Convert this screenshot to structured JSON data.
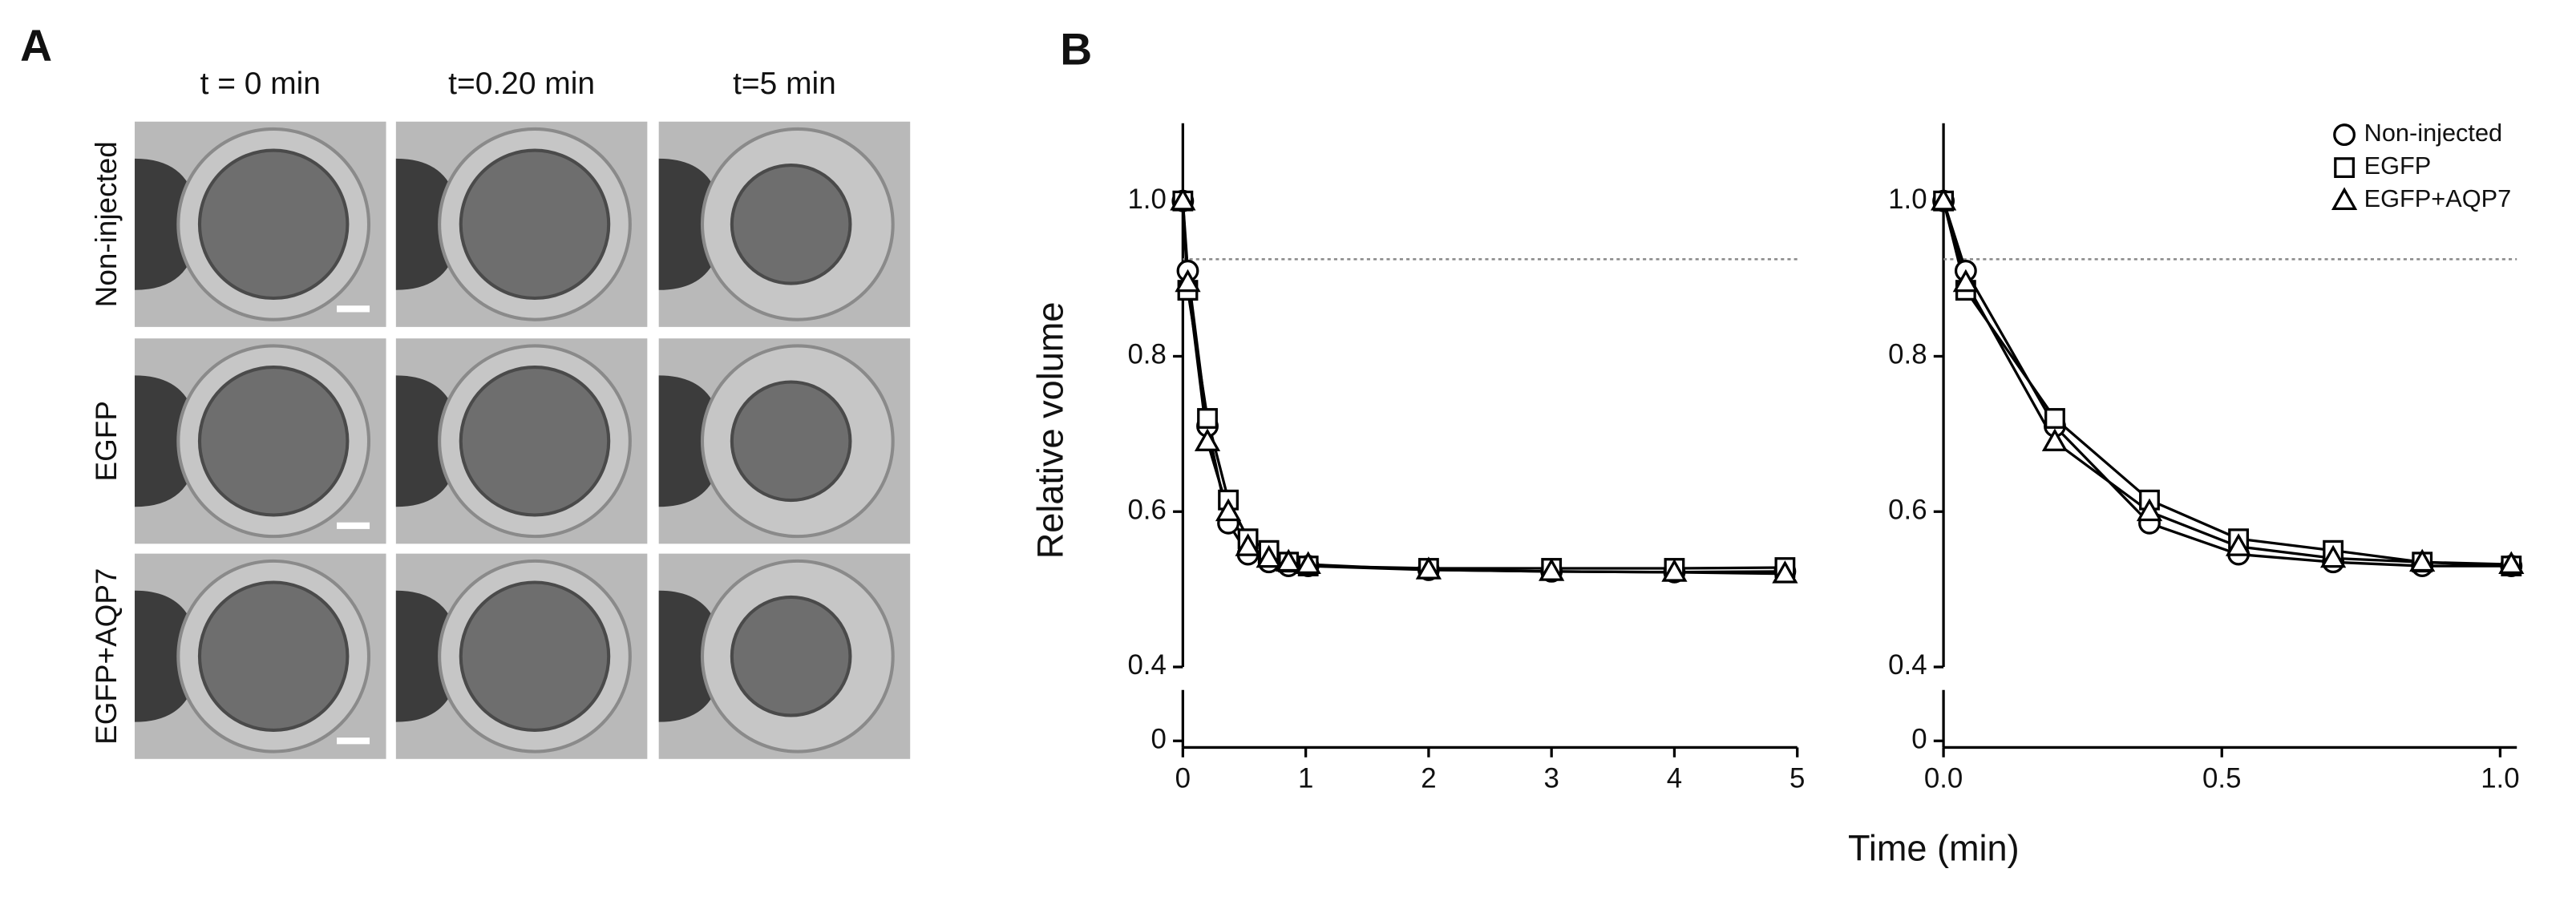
{
  "panel_a": {
    "label": "A",
    "columns": [
      "t = 0 min",
      "t=0.20 min",
      "t=5 min"
    ],
    "rows": [
      "Non-injected",
      "EGFP",
      "EGFP+AQP7"
    ]
  },
  "panel_b": {
    "label": "B",
    "ylabel": "Relative volume",
    "xlabel": "Time (min)"
  },
  "chart_data": [
    {
      "type": "line",
      "x": [
        0,
        0.04,
        0.2,
        0.37,
        0.53,
        0.7,
        0.86,
        1.02,
        2,
        3,
        4,
        4.9
      ],
      "series": [
        {
          "color": "#000000",
          "marker": "circle",
          "values": [
            1.0,
            0.91,
            0.71,
            0.585,
            0.545,
            0.535,
            0.53,
            0.53,
            0.525,
            0.523,
            0.522,
            0.523
          ]
        },
        {
          "color": "#000000",
          "marker": "square",
          "values": [
            1.0,
            0.885,
            0.72,
            0.615,
            0.565,
            0.55,
            0.535,
            0.53,
            0.527,
            0.527,
            0.527,
            0.528
          ]
        },
        {
          "color": "#000000",
          "marker": "triangle",
          "values": [
            1.0,
            0.895,
            0.69,
            0.6,
            0.555,
            0.54,
            0.535,
            0.532,
            0.525,
            0.523,
            0.522,
            0.52
          ]
        }
      ],
      "xlim": [
        0,
        5
      ],
      "xticks": [
        0,
        1,
        2,
        3,
        4,
        5
      ],
      "ylim": [
        0.4,
        1.1
      ],
      "yticks": [
        0.4,
        0.6,
        0.8,
        {
          "value": 1.0,
          "label": "1.0"
        }
      ],
      "lower_ticks": [
        0
      ],
      "reference_line": 0.925
    },
    {
      "type": "line",
      "x": [
        0,
        0.04,
        0.2,
        0.37,
        0.53,
        0.7,
        0.86,
        1.02
      ],
      "series": [
        {
          "name": "Non-injected",
          "color": "#000000",
          "marker": "circle",
          "values": [
            1.0,
            0.91,
            0.71,
            0.585,
            0.545,
            0.535,
            0.53,
            0.53
          ]
        },
        {
          "name": "EGFP",
          "color": "#000000",
          "marker": "square",
          "values": [
            1.0,
            0.885,
            0.72,
            0.615,
            0.565,
            0.55,
            0.535,
            0.53
          ]
        },
        {
          "name": "EGFP+AQP7",
          "color": "#000000",
          "marker": "triangle",
          "values": [
            1.0,
            0.895,
            0.69,
            0.6,
            0.555,
            0.54,
            0.535,
            0.532
          ]
        }
      ],
      "xlim": [
        0,
        1.03
      ],
      "xticks": [
        {
          "value": 0,
          "label": "0.0"
        },
        0.5,
        {
          "value": 1,
          "label": "1.0"
        }
      ],
      "ylim": [
        0.4,
        1.1
      ],
      "yticks": [
        0.4,
        0.6,
        0.8,
        {
          "value": 1.0,
          "label": "1.0"
        }
      ],
      "lower_ticks": [
        0
      ],
      "reference_line": 0.925,
      "legend": "upper right"
    }
  ]
}
